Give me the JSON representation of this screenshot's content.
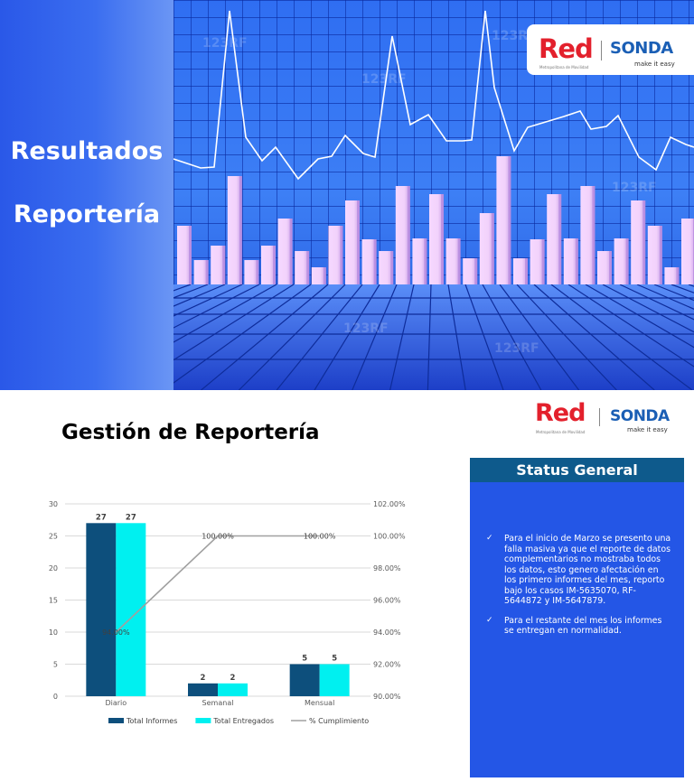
{
  "slide1": {
    "title_line1": "Resultados",
    "title_line2": "Reportería",
    "watermark": "123RF"
  },
  "logo": {
    "red_text": "Red",
    "red_subtitle": "Metropolitana de Movilidad",
    "sonda_text": "SONDA",
    "sonda_tagline": "make it easy",
    "colors": {
      "red": "#e3202c",
      "sonda": "#1b5fb5"
    }
  },
  "slide2": {
    "title": "Gestión de Reportería"
  },
  "status": {
    "title": "Status General",
    "items": [
      "Para el inicio de Marzo se presento una falla masiva ya que el reporte de datos complementarios no mostraba todos los datos, esto genero afectación en los primero informes del mes, reporto bajo los casos IM-5635070, RF-5644872 y IM-5647879.",
      "Para el restante del mes los informes se entregan en normalidad."
    ],
    "colors": {
      "panel": "#2456e6",
      "header": "#0e5a8c"
    }
  },
  "chart_data": {
    "type": "bar",
    "categories": [
      "Diario",
      "Semanal",
      "Mensual"
    ],
    "series": [
      {
        "name": "Total Informes",
        "type": "bar",
        "axis": "left",
        "values": [
          27,
          2,
          5
        ],
        "color": "#0d4f7c"
      },
      {
        "name": "Total Entregados",
        "type": "bar",
        "axis": "left",
        "values": [
          27,
          2,
          5
        ],
        "color": "#00f0f0"
      },
      {
        "name": "% Cumplimiento",
        "type": "line",
        "axis": "right",
        "values": [
          94.0,
          100.0,
          100.0
        ],
        "labels": [
          "94.00%",
          "100.00%",
          "100.00%"
        ],
        "color": "#a0a0a0"
      }
    ],
    "ylim_left": [
      0,
      30
    ],
    "yticks_left": [
      "0",
      "5",
      "10",
      "15",
      "20",
      "25",
      "30"
    ],
    "ylim_right": [
      90,
      102
    ],
    "yticks_right": [
      "90.00%",
      "92.00%",
      "94.00%",
      "96.00%",
      "98.00%",
      "100.00%",
      "102.00%"
    ],
    "grid": true,
    "legend": "bottom",
    "title": "",
    "xlabel": "",
    "ylabel": ""
  }
}
